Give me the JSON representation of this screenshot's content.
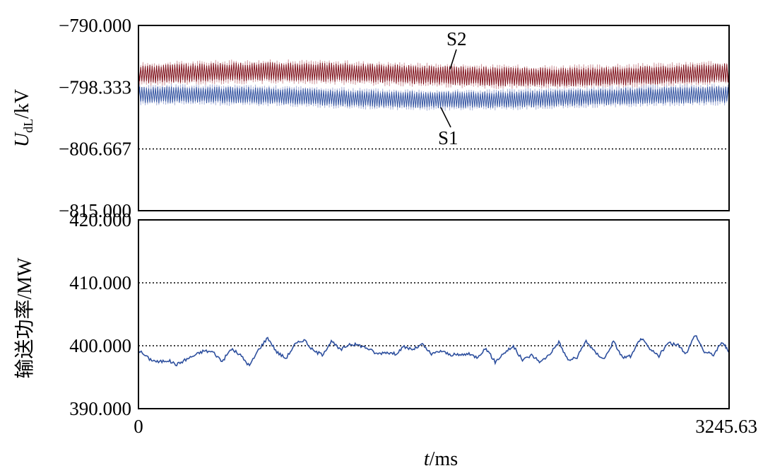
{
  "chart_data": [
    {
      "type": "line",
      "title": "",
      "xlabel_prefix": "t",
      "xlabel_suffix": "/ms",
      "ylabel_main": "U",
      "ylabel_sub": "dL",
      "ylabel_suffix": "/kV",
      "xlim": [
        0,
        3245.63
      ],
      "ylim": [
        -815.0,
        -790.0
      ],
      "yticks": [
        "−790.000",
        "−798.333",
        "−806.667",
        "−815.000"
      ],
      "ytick_values": [
        -790.0,
        -798.333,
        -806.667,
        -815.0
      ],
      "reference_lines": [
        -806.667
      ],
      "series": [
        {
          "name": "S2",
          "color": "#7a0a14",
          "light_color": "#c98a8f",
          "center": -796.6,
          "amplitude": 2.6
        },
        {
          "name": "S1",
          "color": "#2d4f9e",
          "light_color": "#9aa6d3",
          "center": -799.7,
          "amplitude": 2.3
        }
      ]
    },
    {
      "type": "line",
      "title": "",
      "xlabel": "",
      "ylabel": "输送功率/MW",
      "xlim": [
        0,
        3245.63
      ],
      "ylim": [
        390.0,
        420.0
      ],
      "yticks": [
        "420.000",
        "410.000",
        "400.000",
        "390.000"
      ],
      "ytick_values": [
        420.0,
        410.0,
        400.0,
        390.0
      ],
      "xticks": [
        "0",
        "3245.63"
      ],
      "xtick_values": [
        0,
        3245.63
      ],
      "reference_lines": [
        410.0,
        400.0
      ],
      "series": [
        {
          "name": "",
          "color": "#2d4f9e",
          "x": [
            0,
            60,
            110,
            160,
            210,
            260,
            310,
            360,
            410,
            460,
            510,
            560,
            610,
            660,
            710,
            760,
            810,
            860,
            910,
            960,
            1010,
            1060,
            1110,
            1160,
            1210,
            1260,
            1310,
            1360,
            1410,
            1460,
            1510,
            1560,
            1610,
            1660,
            1710,
            1760,
            1810,
            1860,
            1910,
            1960,
            2010,
            2060,
            2110,
            2160,
            2210,
            2260,
            2310,
            2360,
            2410,
            2460,
            2510,
            2560,
            2610,
            2660,
            2710,
            2760,
            2810,
            2860,
            2910,
            2960,
            3010,
            3060,
            3110,
            3160,
            3210,
            3245.63
          ],
          "y": [
            399.3,
            397.9,
            397.4,
            397.7,
            397.0,
            397.8,
            398.5,
            399.2,
            399.0,
            397.5,
            399.5,
            398.5,
            396.8,
            399.4,
            401.3,
            399.0,
            398.0,
            400.2,
            401.0,
            399.2,
            398.6,
            400.7,
            399.3,
            400.3,
            400.1,
            399.6,
            398.7,
            399.0,
            398.7,
            399.8,
            399.4,
            400.2,
            398.6,
            399.2,
            398.6,
            398.5,
            398.7,
            398.2,
            399.6,
            397.4,
            398.9,
            399.9,
            397.7,
            398.5,
            397.4,
            398.7,
            400.6,
            397.7,
            398.1,
            400.8,
            398.9,
            397.9,
            400.7,
            398.1,
            398.4,
            401.3,
            399.4,
            398.4,
            400.4,
            400.2,
            398.8,
            401.8,
            399.0,
            398.6,
            400.6,
            398.9
          ]
        }
      ]
    }
  ]
}
